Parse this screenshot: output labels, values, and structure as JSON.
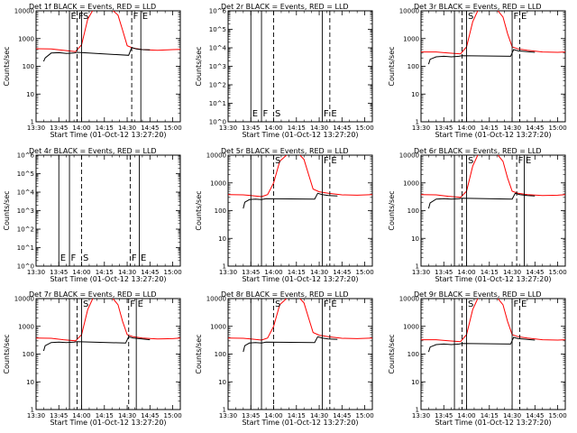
{
  "figure": {
    "colors": {
      "events": "#000000",
      "lld": "#ff0000",
      "background": "#ffffff"
    }
  },
  "chart_data": [
    {
      "type": "line",
      "title": "Det 1f BLACK = Events, RED = LLD",
      "xlabel": "Start Time (01-Oct-12 13:27:20)",
      "ylabel": "Counts/sec",
      "xlim": [
        "13:30",
        "15:05"
      ],
      "yscale": "log",
      "ylim": [
        1,
        10000
      ],
      "xticks": [
        "13:30",
        "13:45",
        "14:00",
        "14:15",
        "14:30",
        "14:45",
        "15:00"
      ],
      "yticks": [
        "1",
        "10",
        "100",
        "1000",
        "10000"
      ],
      "markers": [
        {
          "time": "13:52",
          "style": "solid",
          "label": "E"
        },
        {
          "time": "13:57",
          "style": "dashed",
          "label": "F"
        },
        {
          "time": "14:00",
          "style": "solid",
          "label": "S"
        },
        {
          "time": "14:33",
          "style": "dashed",
          "label": "F"
        },
        {
          "time": "14:39",
          "style": "solid",
          "label": "E"
        }
      ],
      "series": [
        {
          "name": "LLD",
          "color": "#ff0000",
          "x": [
            "13:30",
            "13:40",
            "13:48",
            "13:56",
            "14:00",
            "14:04",
            "14:08",
            "14:14",
            "14:20",
            "14:24",
            "14:27",
            "14:30",
            "14:34",
            "14:40",
            "14:50",
            "15:00",
            "15:05"
          ],
          "y": [
            430,
            420,
            380,
            340,
            600,
            5000,
            12000,
            12000,
            11000,
            7000,
            2000,
            550,
            450,
            400,
            380,
            400,
            410
          ]
        },
        {
          "name": "Events",
          "color": "#000000",
          "x": [
            "13:35",
            "13:36",
            "13:40",
            "13:45",
            "13:50",
            "13:55",
            "13:57",
            "14:31",
            "14:33",
            "14:36",
            "14:40",
            "14:45"
          ],
          "y": [
            150,
            200,
            300,
            310,
            290,
            300,
            320,
            250,
            480,
            420,
            400,
            390
          ]
        }
      ]
    },
    {
      "type": "line",
      "title": "Det 2r BLACK = Events, RED = LLD",
      "xlabel": "Start Time (01-Oct-12 13:27:20)",
      "ylabel": "Counts/sec",
      "xlim": [
        "13:30",
        "15:05"
      ],
      "yscale": "log",
      "ylim": [
        1,
        1000000
      ],
      "xticks": [
        "13:30",
        "13:45",
        "14:00",
        "14:15",
        "14:30",
        "14:45",
        "15:00"
      ],
      "yticks": [
        "10^0",
        "10^1",
        "10^2",
        "10^3",
        "10^4",
        "10^5",
        "10^6"
      ],
      "markers": [
        {
          "time": "13:45",
          "style": "solid",
          "label": "E"
        },
        {
          "time": "13:52",
          "style": "solid",
          "label": "F"
        },
        {
          "time": "14:00",
          "style": "dashed",
          "label": "S"
        },
        {
          "time": "14:32",
          "style": "solid",
          "label": "F"
        },
        {
          "time": "14:37",
          "style": "dashed",
          "label": "E"
        }
      ],
      "series": []
    },
    {
      "type": "line",
      "title": "Det 3r BLACK = Events, RED = LLD",
      "xlabel": "Start Time (01-Oct-12 13:27:20)",
      "ylabel": "Counts/sec",
      "xlim": [
        "13:30",
        "15:05"
      ],
      "yscale": "log",
      "ylim": [
        1,
        10000
      ],
      "xticks": [
        "13:30",
        "13:45",
        "14:00",
        "14:15",
        "14:30",
        "14:45",
        "15:00"
      ],
      "yticks": [
        "1",
        "10",
        "100",
        "1000",
        "10000"
      ],
      "markers": [
        {
          "time": "13:52",
          "style": "solid",
          "label": ""
        },
        {
          "time": "13:57",
          "style": "dashed",
          "label": ""
        },
        {
          "time": "14:00",
          "style": "solid",
          "label": "S"
        },
        {
          "time": "14:30",
          "style": "solid",
          "label": "F"
        },
        {
          "time": "14:35",
          "style": "dashed",
          "label": "E"
        }
      ],
      "series": [
        {
          "name": "LLD",
          "color": "#ff0000",
          "x": [
            "13:30",
            "13:40",
            "13:48",
            "13:56",
            "14:00",
            "14:04",
            "14:08",
            "14:14",
            "14:20",
            "14:24",
            "14:27",
            "14:30",
            "14:34",
            "14:40",
            "14:50",
            "15:00",
            "15:05"
          ],
          "y": [
            330,
            330,
            300,
            280,
            500,
            4000,
            12000,
            12000,
            11000,
            6000,
            1500,
            500,
            420,
            380,
            330,
            320,
            330
          ]
        },
        {
          "name": "Events",
          "color": "#000000",
          "x": [
            "13:35",
            "13:36",
            "13:40",
            "13:45",
            "13:50",
            "13:55",
            "13:57",
            "14:29",
            "14:31",
            "14:34",
            "14:40",
            "14:45"
          ],
          "y": [
            120,
            180,
            220,
            230,
            220,
            230,
            240,
            230,
            400,
            360,
            340,
            320
          ]
        }
      ]
    },
    {
      "type": "line",
      "title": "Det 4r BLACK = Events, RED = LLD",
      "xlabel": "Start Time (01-Oct-12 13:27:20)",
      "ylabel": "Counts/sec",
      "xlim": [
        "13:30",
        "15:05"
      ],
      "yscale": "log",
      "ylim": [
        1,
        1000000
      ],
      "xticks": [
        "13:30",
        "13:45",
        "14:00",
        "14:15",
        "14:30",
        "14:45",
        "15:00"
      ],
      "yticks": [
        "10^0",
        "10^1",
        "10^2",
        "10^3",
        "10^4",
        "10^5",
        "10^6"
      ],
      "markers": [
        {
          "time": "13:45",
          "style": "solid",
          "label": "E"
        },
        {
          "time": "13:52",
          "style": "solid",
          "label": "F"
        },
        {
          "time": "14:00",
          "style": "dashed",
          "label": "S"
        },
        {
          "time": "14:32",
          "style": "dashed",
          "label": "F"
        },
        {
          "time": "14:38",
          "style": "solid",
          "label": "E"
        }
      ],
      "series": []
    },
    {
      "type": "line",
      "title": "Det 5r BLACK = Events, RED = LLD",
      "xlabel": "Start Time (01-Oct-12 13:27:20)",
      "ylabel": "Counts/sec",
      "xlim": [
        "13:30",
        "15:05"
      ],
      "yscale": "log",
      "ylim": [
        1,
        10000
      ],
      "xticks": [
        "13:30",
        "13:45",
        "14:00",
        "14:15",
        "14:30",
        "14:45",
        "15:00"
      ],
      "yticks": [
        "1",
        "10",
        "100",
        "1000",
        "10000"
      ],
      "markers": [
        {
          "time": "13:45",
          "style": "solid",
          "label": ""
        },
        {
          "time": "13:52",
          "style": "solid",
          "label": ""
        },
        {
          "time": "14:00",
          "style": "dashed",
          "label": "S"
        },
        {
          "time": "14:32",
          "style": "solid",
          "label": "F"
        },
        {
          "time": "14:37",
          "style": "dashed",
          "label": "E"
        }
      ],
      "series": [
        {
          "name": "LLD",
          "color": "#ff0000",
          "x": [
            "13:30",
            "13:40",
            "13:45",
            "13:52",
            "13:56",
            "14:00",
            "14:04",
            "14:10",
            "14:16",
            "14:20",
            "14:23",
            "14:26",
            "14:30",
            "14:36",
            "14:45",
            "14:55",
            "15:05"
          ],
          "y": [
            380,
            370,
            350,
            320,
            380,
            1000,
            6000,
            12000,
            12000,
            7000,
            2000,
            600,
            480,
            420,
            370,
            360,
            380
          ]
        },
        {
          "name": "Events",
          "color": "#000000",
          "x": [
            "13:40",
            "13:41",
            "13:44",
            "13:48",
            "13:52",
            "13:55",
            "14:27",
            "14:29",
            "14:32",
            "14:36",
            "14:42"
          ],
          "y": [
            120,
            200,
            250,
            260,
            250,
            270,
            260,
            420,
            380,
            350,
            340
          ]
        }
      ]
    },
    {
      "type": "line",
      "title": "Det 6r BLACK = Events, RED = LLD",
      "xlabel": "Start Time (01-Oct-12 13:27:20)",
      "ylabel": "Counts/sec",
      "xlim": [
        "13:30",
        "15:05"
      ],
      "yscale": "log",
      "ylim": [
        1,
        10000
      ],
      "xticks": [
        "13:30",
        "13:45",
        "14:00",
        "14:15",
        "14:30",
        "14:45",
        "15:00"
      ],
      "yticks": [
        "1",
        "10",
        "100",
        "1000",
        "10000"
      ],
      "markers": [
        {
          "time": "13:52",
          "style": "solid",
          "label": ""
        },
        {
          "time": "13:57",
          "style": "dashed",
          "label": ""
        },
        {
          "time": "14:00",
          "style": "solid",
          "label": "S"
        },
        {
          "time": "14:33",
          "style": "dashed",
          "label": "F"
        },
        {
          "time": "14:38",
          "style": "solid",
          "label": "E"
        }
      ],
      "series": [
        {
          "name": "LLD",
          "color": "#ff0000",
          "x": [
            "13:30",
            "13:40",
            "13:48",
            "13:56",
            "14:00",
            "14:04",
            "14:08",
            "14:14",
            "14:20",
            "14:24",
            "14:27",
            "14:30",
            "14:34",
            "14:40",
            "14:50",
            "15:00",
            "15:05"
          ],
          "y": [
            380,
            370,
            330,
            300,
            500,
            4000,
            12000,
            12000,
            11000,
            6000,
            1500,
            500,
            420,
            380,
            350,
            360,
            380
          ]
        },
        {
          "name": "Events",
          "color": "#000000",
          "x": [
            "13:35",
            "13:36",
            "13:40",
            "13:45",
            "13:50",
            "13:55",
            "13:57",
            "14:30",
            "14:32",
            "14:35",
            "14:40",
            "14:45"
          ],
          "y": [
            120,
            190,
            260,
            270,
            260,
            270,
            280,
            260,
            420,
            380,
            350,
            340
          ]
        }
      ]
    },
    {
      "type": "line",
      "title": "Det 7r BLACK = Events, RED = LLD",
      "xlabel": "Start Time (01-Oct-12 13:27:20)",
      "ylabel": "Counts/sec",
      "xlim": [
        "13:30",
        "15:05"
      ],
      "yscale": "log",
      "ylim": [
        1,
        10000
      ],
      "xticks": [
        "13:30",
        "13:45",
        "14:00",
        "14:15",
        "14:30",
        "14:45",
        "15:00"
      ],
      "yticks": [
        "1",
        "10",
        "100",
        "1000",
        "10000"
      ],
      "markers": [
        {
          "time": "13:52",
          "style": "solid",
          "label": ""
        },
        {
          "time": "13:57",
          "style": "dashed",
          "label": ""
        },
        {
          "time": "14:00",
          "style": "solid",
          "label": "S"
        },
        {
          "time": "14:31",
          "style": "dashed",
          "label": "F"
        },
        {
          "time": "14:36",
          "style": "solid",
          "label": "E"
        }
      ],
      "series": [
        {
          "name": "LLD",
          "color": "#ff0000",
          "x": [
            "13:30",
            "13:40",
            "13:48",
            "13:56",
            "14:00",
            "14:04",
            "14:08",
            "14:14",
            "14:20",
            "14:24",
            "14:27",
            "14:30",
            "14:34",
            "14:40",
            "14:50",
            "15:00",
            "15:05"
          ],
          "y": [
            380,
            370,
            330,
            300,
            500,
            4000,
            12000,
            12000,
            11000,
            6000,
            1500,
            500,
            420,
            380,
            350,
            360,
            380
          ]
        },
        {
          "name": "Events",
          "color": "#000000",
          "x": [
            "13:35",
            "13:36",
            "13:40",
            "13:45",
            "13:50",
            "13:55",
            "13:57",
            "14:29",
            "14:31",
            "14:34",
            "14:40",
            "14:45"
          ],
          "y": [
            130,
            200,
            260,
            270,
            260,
            270,
            280,
            250,
            420,
            380,
            350,
            330
          ]
        }
      ]
    },
    {
      "type": "line",
      "title": "Det 8r BLACK = Events, RED = LLD",
      "xlabel": "Start Time (01-Oct-12 13:27:20)",
      "ylabel": "Counts/sec",
      "xlim": [
        "13:30",
        "15:05"
      ],
      "yscale": "log",
      "ylim": [
        1,
        10000
      ],
      "xticks": [
        "13:30",
        "13:45",
        "14:00",
        "14:15",
        "14:30",
        "14:45",
        "15:00"
      ],
      "yticks": [
        "1",
        "10",
        "100",
        "1000",
        "10000"
      ],
      "markers": [
        {
          "time": "13:45",
          "style": "solid",
          "label": ""
        },
        {
          "time": "13:52",
          "style": "solid",
          "label": ""
        },
        {
          "time": "14:00",
          "style": "dashed",
          "label": "S"
        },
        {
          "time": "14:32",
          "style": "solid",
          "label": "F"
        },
        {
          "time": "14:37",
          "style": "dashed",
          "label": "E"
        }
      ],
      "series": [
        {
          "name": "LLD",
          "color": "#ff0000",
          "x": [
            "13:30",
            "13:40",
            "13:45",
            "13:52",
            "13:56",
            "14:00",
            "14:04",
            "14:10",
            "14:16",
            "14:20",
            "14:23",
            "14:26",
            "14:30",
            "14:36",
            "14:45",
            "14:55",
            "15:05"
          ],
          "y": [
            380,
            370,
            350,
            320,
            380,
            1000,
            6000,
            12000,
            12000,
            7000,
            2000,
            600,
            480,
            420,
            370,
            360,
            380
          ]
        },
        {
          "name": "Events",
          "color": "#000000",
          "x": [
            "13:40",
            "13:41",
            "13:44",
            "13:48",
            "13:52",
            "13:55",
            "14:27",
            "14:29",
            "14:32",
            "14:36",
            "14:42"
          ],
          "y": [
            120,
            200,
            250,
            260,
            250,
            270,
            260,
            420,
            380,
            350,
            340
          ]
        }
      ]
    },
    {
      "type": "line",
      "title": "Det 9r BLACK = Events, RED = LLD",
      "xlabel": "Start Time (01-Oct-12 13:27:20)",
      "ylabel": "Counts/sec",
      "xlim": [
        "13:30",
        "15:05"
      ],
      "yscale": "log",
      "ylim": [
        1,
        10000
      ],
      "xticks": [
        "13:30",
        "13:45",
        "14:00",
        "14:15",
        "14:30",
        "14:45",
        "15:00"
      ],
      "yticks": [
        "1",
        "10",
        "100",
        "1000",
        "10000"
      ],
      "markers": [
        {
          "time": "13:52",
          "style": "solid",
          "label": ""
        },
        {
          "time": "13:57",
          "style": "dashed",
          "label": ""
        },
        {
          "time": "14:00",
          "style": "solid",
          "label": "S"
        },
        {
          "time": "14:30",
          "style": "solid",
          "label": "F"
        },
        {
          "time": "14:35",
          "style": "dashed",
          "label": "E"
        }
      ],
      "series": [
        {
          "name": "LLD",
          "color": "#ff0000",
          "x": [
            "13:30",
            "13:40",
            "13:48",
            "13:56",
            "14:00",
            "14:04",
            "14:08",
            "14:14",
            "14:20",
            "14:24",
            "14:27",
            "14:30",
            "14:34",
            "14:40",
            "14:50",
            "15:00",
            "15:05"
          ],
          "y": [
            330,
            330,
            300,
            280,
            500,
            4000,
            12000,
            12000,
            11000,
            6000,
            1500,
            500,
            420,
            380,
            330,
            320,
            330
          ]
        },
        {
          "name": "Events",
          "color": "#000000",
          "x": [
            "13:35",
            "13:36",
            "13:40",
            "13:45",
            "13:50",
            "13:55",
            "13:57",
            "14:29",
            "14:31",
            "14:34",
            "14:40",
            "14:45"
          ],
          "y": [
            120,
            180,
            220,
            230,
            220,
            230,
            240,
            230,
            400,
            360,
            340,
            320
          ]
        }
      ]
    }
  ]
}
